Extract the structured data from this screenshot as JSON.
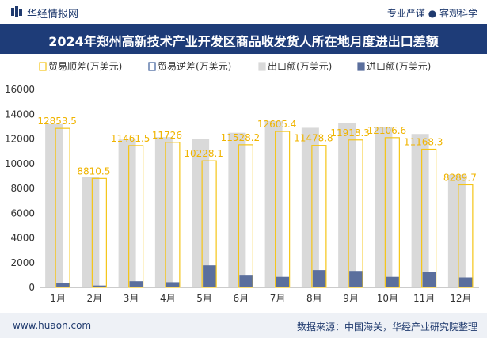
{
  "header": {
    "brand": "华经情报网",
    "tagline": "专业严谨 ● 客观科学"
  },
  "footer": {
    "url": "www.huaon.com",
    "source": "数据来源：中国海关，华经产业研究院整理"
  },
  "colors": {
    "surplus": "#f5c518",
    "deficit": "#3d5d99",
    "export": "#d9d9d9",
    "import": "#5b6f9d",
    "title_bg": "#1e3c78",
    "label": "#f0b400"
  },
  "chart_data": {
    "type": "bar",
    "title": "2024年郑州高新技术产业开发区商品收发货人所在地月度进出口差额",
    "categories": [
      "1月",
      "2月",
      "3月",
      "4月",
      "5月",
      "6月",
      "7月",
      "8月",
      "9月",
      "10月",
      "11月",
      "12月"
    ],
    "ylim": [
      0,
      16000
    ],
    "yticks": [
      0,
      2000,
      4000,
      6000,
      8000,
      10000,
      12000,
      14000,
      16000
    ],
    "legend_position": "top",
    "grid": false,
    "series": [
      {
        "name": "贸易顺差(万美元)",
        "kind": "outline",
        "values": [
          12853.5,
          8810.5,
          11461.5,
          11726,
          10228.1,
          11528.2,
          12605.4,
          11478.8,
          11918.3,
          12106.6,
          11168.3,
          8289.7
        ],
        "labels": [
          "12853.5",
          "8810.5",
          "11461.5",
          "11726",
          "10228.1",
          "11528.2",
          "12605.4",
          "11478.8",
          "11918.3",
          "12106.6",
          "11168.3",
          "8289.7"
        ]
      },
      {
        "name": "贸易逆差(万美元)",
        "kind": "outline",
        "values": [
          0,
          0,
          0,
          0,
          0,
          0,
          0,
          0,
          0,
          0,
          0,
          0
        ]
      },
      {
        "name": "出口额(万美元)",
        "kind": "fill",
        "values": [
          13200,
          8950,
          11950,
          12150,
          12000,
          12500,
          13450,
          12900,
          13250,
          12950,
          12400,
          9100
        ]
      },
      {
        "name": "进口额(万美元)",
        "kind": "fill",
        "values": [
          350,
          150,
          500,
          420,
          1780,
          950,
          850,
          1400,
          1330,
          850,
          1230,
          800
        ]
      }
    ]
  }
}
